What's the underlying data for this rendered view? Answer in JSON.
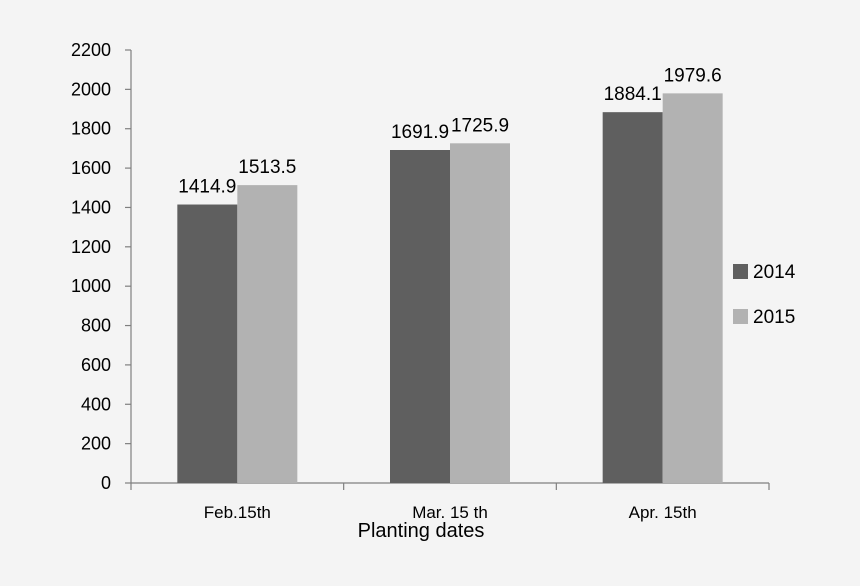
{
  "chart_data": {
    "type": "bar",
    "title": "",
    "xlabel": "Planting dates",
    "ylabel": "",
    "ylim": [
      0,
      2200
    ],
    "yticks": [
      0,
      200,
      400,
      600,
      800,
      1000,
      1200,
      1400,
      1600,
      1800,
      2000,
      2200
    ],
    "grid": false,
    "legend_position": "right",
    "categories": [
      "Feb.15th",
      "Mar. 15 th",
      "Apr. 15th"
    ],
    "series": [
      {
        "name": "2014",
        "color": "#5f5f5f",
        "values": [
          1414.9,
          1691.9,
          1884.1
        ],
        "labels": [
          "1414.9",
          "1691.9",
          "1884.1"
        ]
      },
      {
        "name": "2015",
        "color": "#b2b2b2",
        "values": [
          1513.5,
          1725.9,
          1979.6
        ],
        "labels": [
          "1513.5",
          "1725.9",
          "1979.6"
        ]
      }
    ]
  }
}
